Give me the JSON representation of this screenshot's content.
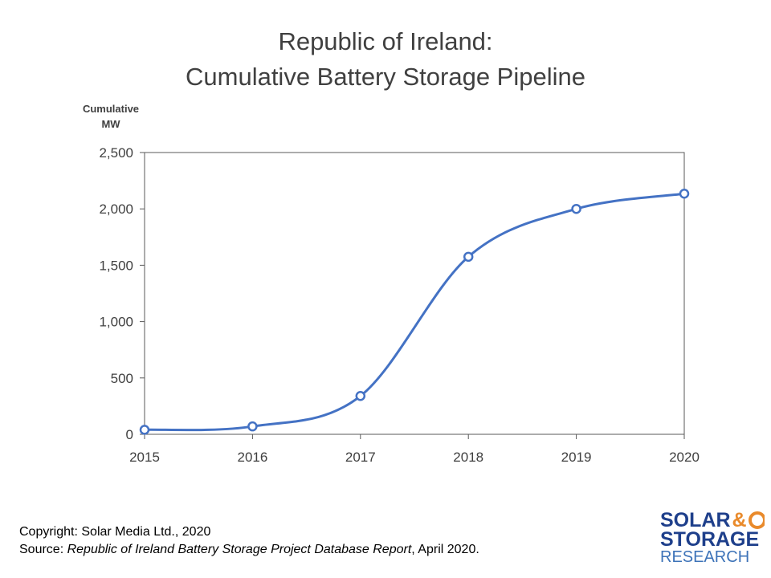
{
  "header": {
    "title_line1": "Republic of Ireland:",
    "title_line2": "Cumulative Battery Storage Pipeline"
  },
  "footer": {
    "copyright": "Copyright: Solar Media Ltd., 2020",
    "source_prefix": "Source: ",
    "source_title": "Republic of Ireland Battery Storage Project Database Report",
    "source_suffix": ", April 2020."
  },
  "logo": {
    "line1": "SOLAR",
    "amp": "&",
    "line2": "STORAGE",
    "line3": "RESEARCH"
  },
  "colors": {
    "series": "#4472c4",
    "axis": "#595959",
    "text": "#404040",
    "logo_navy": "#1e3f8b",
    "logo_orange": "#e98a2b",
    "logo_blue": "#3d73b8"
  },
  "chart_data": {
    "type": "line",
    "title": "Republic of Ireland: Cumulative Battery Storage Pipeline",
    "ylabel_line1": "Cumulative",
    "ylabel_line2": "MW",
    "xlabel": "",
    "x": [
      "2015",
      "2016",
      "2017",
      "2018",
      "2019",
      "2020"
    ],
    "series": [
      {
        "values": [
          40,
          70,
          340,
          1575,
          2000,
          2135
        ]
      }
    ],
    "ylim": [
      0,
      2500
    ],
    "yticks": [
      0,
      500,
      1000,
      1500,
      2000,
      2500
    ],
    "ytick_labels": [
      "0",
      "500",
      "1,000",
      "1,500",
      "2,000",
      "2,500"
    ],
    "smooth": true,
    "markers": "hollow-circle",
    "grid": false,
    "legend": "none"
  }
}
